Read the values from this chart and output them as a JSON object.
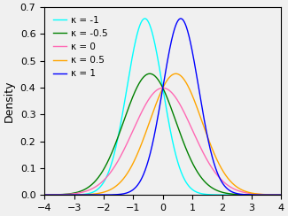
{
  "kappas": [
    -1,
    -0.5,
    0,
    0.5,
    1
  ],
  "colors": [
    "cyan",
    "green",
    "#ff69b4",
    "orange",
    "blue"
  ],
  "labels": [
    "κ = -1",
    "κ = -0.5",
    "κ = 0",
    "κ = 0.5",
    "κ = 1"
  ],
  "xlim": [
    -4,
    4
  ],
  "ylim": [
    0,
    0.7
  ],
  "ylabel": "Density",
  "yticks": [
    0.0,
    0.1,
    0.2,
    0.3,
    0.4,
    0.5,
    0.6,
    0.7
  ],
  "xticks": [
    -4,
    -3,
    -2,
    -1,
    0,
    1,
    2,
    3,
    4
  ],
  "figsize": [
    3.25,
    2.44
  ],
  "dpi": 100,
  "background_color": "#f0f0f0"
}
